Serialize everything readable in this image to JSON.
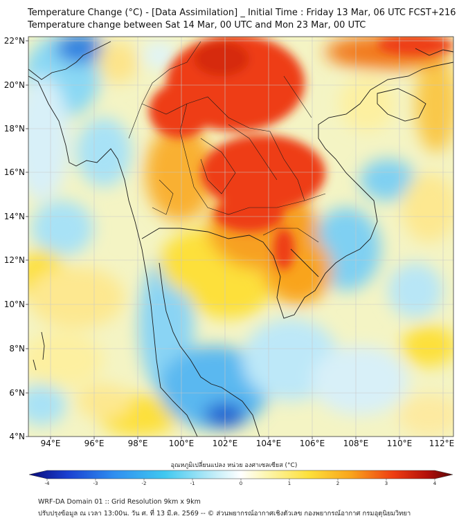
{
  "header": {
    "line1": "Temperature Change (°C) - [Data Assimilation] _ Initial Time : Friday 13 Mar, 06 UTC FCST+216",
    "line2": "Temperature change between Sat 14 Mar, 00 UTC and Mon 23 Mar, 00 UTC"
  },
  "map": {
    "lat_labels": [
      "22°N",
      "20°N",
      "18°N",
      "16°N",
      "14°N",
      "12°N",
      "10°N",
      "8°N",
      "6°N",
      "4°N"
    ],
    "lon_labels": [
      "94°E",
      "96°E",
      "98°E",
      "100°E",
      "102°E",
      "104°E",
      "106°E",
      "108°E",
      "110°E",
      "112°E"
    ],
    "lat_range": [
      4,
      22.2
    ],
    "lon_range": [
      93,
      112.4
    ]
  },
  "colorbar": {
    "title": "อุณหภูมิเปลี่ยนแปลง หน่วย องศาเซลเซียส (°C)",
    "ticks": [
      "-4",
      "-3",
      "-2",
      "-1",
      "0",
      "1",
      "2",
      "3",
      "4"
    ],
    "range": [
      -4,
      4
    ],
    "colors": [
      "#0a0a78",
      "#1a3fd0",
      "#2f8ef0",
      "#40c8f0",
      "#c4eef8",
      "#ffffff",
      "#fdf6b0",
      "#fde03a",
      "#f9a41c",
      "#ee3d12",
      "#b30f0a",
      "#5a0606"
    ]
  },
  "footer": {
    "line1": "WRF-DA Domain 01 :: Grid Resolution 9km x 9km",
    "line2": "ปรับปรุงข้อมูล ณ เวลา 13:00น. วัน ศ. ที่ 13 มี.ค. 2569 -- © ส่วนพยากรณ์อากาศเชิงตัวเลข กองพยากรณ์อากาศ กรมอุตุนิยมวิทยา"
  }
}
